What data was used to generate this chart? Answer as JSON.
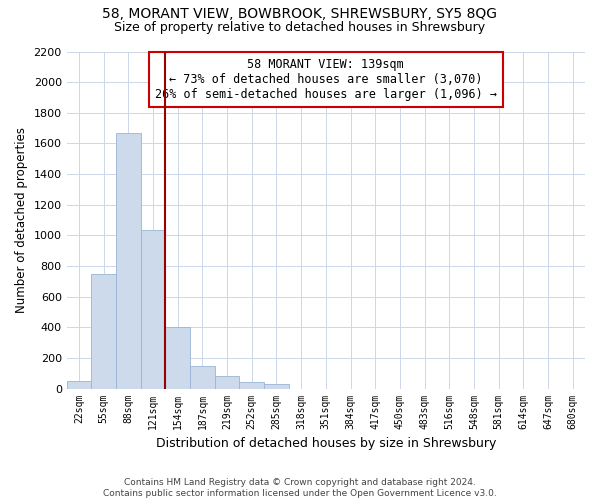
{
  "title": "58, MORANT VIEW, BOWBROOK, SHREWSBURY, SY5 8QG",
  "subtitle": "Size of property relative to detached houses in Shrewsbury",
  "xlabel": "Distribution of detached houses by size in Shrewsbury",
  "ylabel": "Number of detached properties",
  "bar_labels": [
    "22sqm",
    "55sqm",
    "88sqm",
    "121sqm",
    "154sqm",
    "187sqm",
    "219sqm",
    "252sqm",
    "285sqm",
    "318sqm",
    "351sqm",
    "384sqm",
    "417sqm",
    "450sqm",
    "483sqm",
    "516sqm",
    "548sqm",
    "581sqm",
    "614sqm",
    "647sqm",
    "680sqm"
  ],
  "bar_values": [
    50,
    745,
    1670,
    1035,
    405,
    150,
    85,
    45,
    30,
    0,
    0,
    0,
    0,
    0,
    0,
    0,
    0,
    0,
    0,
    0,
    0
  ],
  "bar_color": "#cddaec",
  "bar_edge_color": "#9ab4d4",
  "vline_x": 3.5,
  "vline_color": "#990000",
  "ylim": [
    0,
    2200
  ],
  "yticks": [
    0,
    200,
    400,
    600,
    800,
    1000,
    1200,
    1400,
    1600,
    1800,
    2000,
    2200
  ],
  "annotation_title": "58 MORANT VIEW: 139sqm",
  "annotation_line1": "← 73% of detached houses are smaller (3,070)",
  "annotation_line2": "26% of semi-detached houses are larger (1,096) →",
  "annotation_box_color": "#ffffff",
  "annotation_box_edge": "#cc0000",
  "footer_line1": "Contains HM Land Registry data © Crown copyright and database right 2024.",
  "footer_line2": "Contains public sector information licensed under the Open Government Licence v3.0.",
  "background_color": "#ffffff",
  "grid_color": "#ccd8e8"
}
